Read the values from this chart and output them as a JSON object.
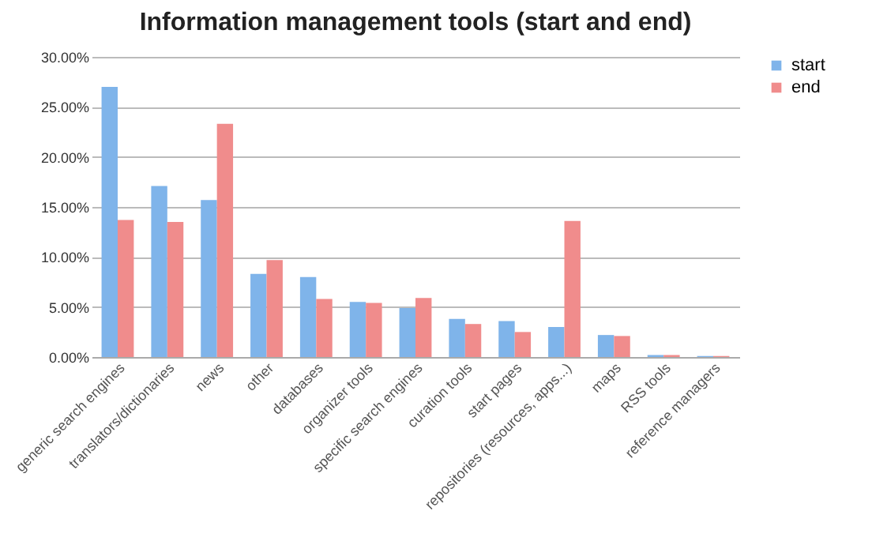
{
  "chart_data": {
    "type": "bar",
    "title": "Information management tools (start and end)",
    "categories": [
      "generic search engines",
      "translators/dictionaries",
      "news",
      "other",
      "databases",
      "organizer tools",
      "specific search engines",
      "curation tools",
      "start pages",
      "repositories (resources, apps...)",
      "maps",
      "RSS tools",
      "reference managers"
    ],
    "series": [
      {
        "name": "start",
        "color": "#7fb4ea",
        "values": [
          27.0,
          17.1,
          15.7,
          8.3,
          8.0,
          5.5,
          4.9,
          3.8,
          3.6,
          3.0,
          2.2,
          0.2,
          0.1
        ]
      },
      {
        "name": "end",
        "color": "#f08c8c",
        "values": [
          13.7,
          13.5,
          23.3,
          9.7,
          5.8,
          5.4,
          5.9,
          3.3,
          2.5,
          13.6,
          2.1,
          0.2,
          0.1
        ]
      }
    ],
    "ylim": [
      0,
      30
    ],
    "yticks": [
      {
        "value": 0,
        "label": "0.00%"
      },
      {
        "value": 5,
        "label": "5.00%"
      },
      {
        "value": 10,
        "label": "10.00%"
      },
      {
        "value": 15,
        "label": "15.00%"
      },
      {
        "value": 20,
        "label": "20.00%"
      },
      {
        "value": 25,
        "label": "25.00%"
      },
      {
        "value": 30,
        "label": "30.00%"
      }
    ],
    "grid": "y",
    "legend": "right"
  }
}
